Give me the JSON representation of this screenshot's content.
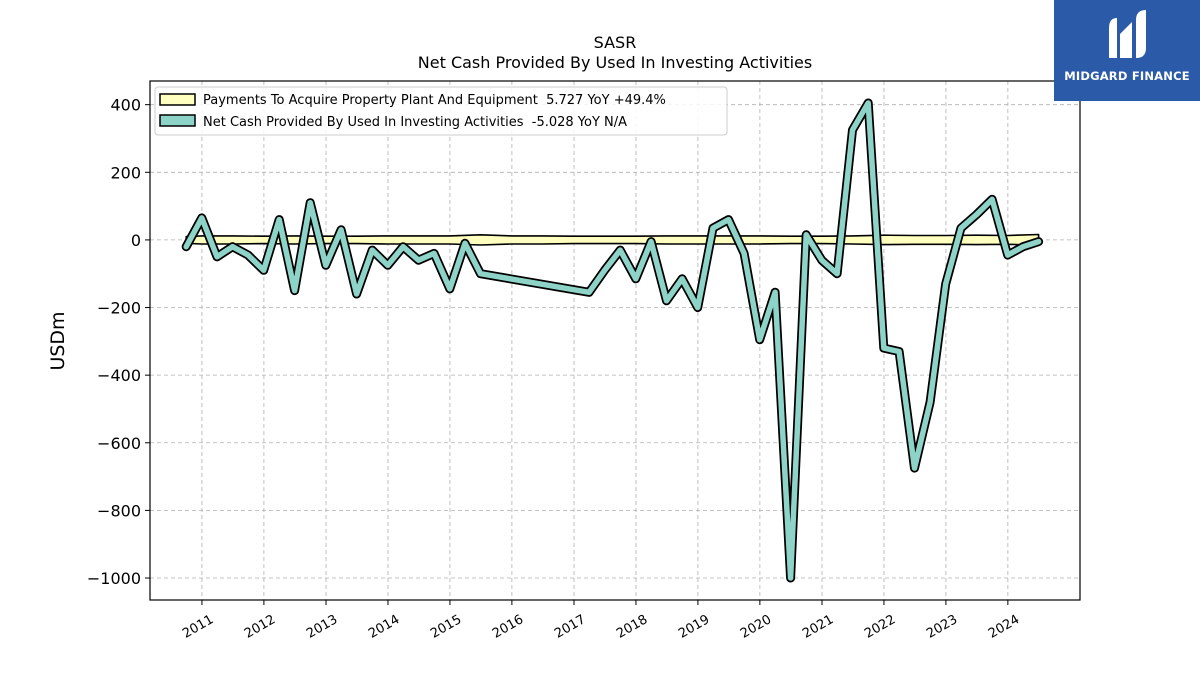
{
  "brand": {
    "name": "MIDGARD FINANCE",
    "bg_color": "#2b5aa8"
  },
  "chart_data": {
    "type": "area",
    "title": "SASR",
    "subtitle": "Net Cash Provided By Used In Investing Activities",
    "ylabel": "USDm",
    "xlabel": "",
    "xlim": [
      "2010-03-01",
      "2025-03-01"
    ],
    "ylim": [
      -1065,
      470
    ],
    "yticks": [
      400,
      200,
      0,
      -200,
      -400,
      -600,
      -800,
      -1000
    ],
    "ytick_labels": [
      "400",
      "200",
      "0",
      "−200",
      "−400",
      "−600",
      "−800",
      "−1000"
    ],
    "xticks": [
      "2011-01-01",
      "2012-01-01",
      "2013-01-01",
      "2014-01-01",
      "2015-01-01",
      "2016-01-01",
      "2017-01-01",
      "2018-01-01",
      "2019-01-01",
      "2020-01-01",
      "2021-01-01",
      "2022-01-01",
      "2023-01-01",
      "2024-01-01"
    ],
    "xtick_labels": [
      "2011",
      "2012",
      "2013",
      "2014",
      "2015",
      "2016",
      "2017",
      "2018",
      "2019",
      "2020",
      "2021",
      "2022",
      "2023",
      "2024"
    ],
    "grid": true,
    "legend_position": "top-left",
    "series": [
      {
        "name": "Payments To Acquire Property Plant And Equipment",
        "legend_label": "Payments To Acquire Property Plant And Equipment  5.727 YoY +49.4%",
        "color": "#ffffc0",
        "kind": "band",
        "x": [
          "2010-09-30",
          "2010-12-31",
          "2011-06-30",
          "2011-12-31",
          "2012-06-30",
          "2012-12-31",
          "2013-06-30",
          "2013-12-31",
          "2014-06-30",
          "2014-12-31",
          "2015-06-30",
          "2015-12-31",
          "2016-06-30",
          "2016-12-31",
          "2017-06-30",
          "2017-12-31",
          "2018-06-30",
          "2018-12-31",
          "2019-06-30",
          "2019-12-31",
          "2020-06-30",
          "2020-12-31",
          "2021-06-30",
          "2021-12-31",
          "2022-06-30",
          "2022-12-31",
          "2023-06-30",
          "2023-12-31",
          "2024-06-30"
        ],
        "values": [
          10,
          12,
          12,
          11,
          12,
          11,
          11,
          12,
          12,
          12,
          15,
          12,
          12,
          11,
          11,
          11,
          12,
          12,
          12,
          12,
          11,
          11,
          12,
          14,
          13,
          13,
          14,
          13,
          16
        ]
      },
      {
        "name": "Net Cash Provided By Used In Investing Activities",
        "legend_label": "Net Cash Provided By Used In Investing Activities  -5.028 YoY N/A",
        "color": "#8dd3c7",
        "kind": "line",
        "x": [
          "2010-09-30",
          "2010-12-31",
          "2011-03-31",
          "2011-06-30",
          "2011-09-30",
          "2011-12-31",
          "2012-03-31",
          "2012-06-30",
          "2012-09-30",
          "2012-12-31",
          "2013-03-31",
          "2013-06-30",
          "2013-09-30",
          "2013-12-31",
          "2014-03-31",
          "2014-06-30",
          "2014-09-30",
          "2014-12-31",
          "2015-03-31",
          "2015-06-30",
          "2017-03-31",
          "2017-06-30",
          "2017-09-30",
          "2017-12-31",
          "2018-03-31",
          "2018-06-30",
          "2018-09-30",
          "2018-12-31",
          "2019-03-31",
          "2019-06-30",
          "2019-09-30",
          "2019-12-31",
          "2020-03-31",
          "2020-06-30",
          "2020-09-30",
          "2020-12-31",
          "2021-03-31",
          "2021-06-30",
          "2021-09-30",
          "2021-12-31",
          "2022-03-31",
          "2022-06-30",
          "2022-09-30",
          "2022-12-31",
          "2023-03-31",
          "2023-06-30",
          "2023-09-30",
          "2023-12-31",
          "2024-03-31",
          "2024-06-30"
        ],
        "values": [
          -20,
          65,
          -50,
          -20,
          -45,
          -90,
          60,
          -150,
          110,
          -75,
          30,
          -160,
          -30,
          -75,
          -20,
          -60,
          -40,
          -145,
          -10,
          -100,
          -155,
          -90,
          -30,
          -115,
          -5,
          -180,
          -115,
          -200,
          35,
          60,
          -40,
          -295,
          -155,
          -1000,
          15,
          -60,
          -100,
          325,
          405,
          -320,
          -330,
          -675,
          -480,
          -130,
          35,
          75,
          120,
          -45,
          -20,
          -5
        ]
      }
    ]
  }
}
